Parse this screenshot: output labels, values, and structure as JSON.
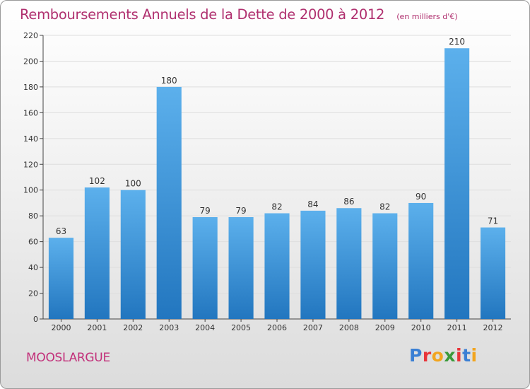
{
  "chart_data": {
    "type": "bar",
    "title": "Remboursements Annuels de la Dette de 2000 à 2012",
    "subtitle": "(en milliers d'€)",
    "categories": [
      "2000",
      "2001",
      "2002",
      "2003",
      "2004",
      "2005",
      "2006",
      "2007",
      "2008",
      "2009",
      "2010",
      "2011",
      "2012"
    ],
    "values": [
      63,
      102,
      100,
      180,
      79,
      79,
      82,
      84,
      86,
      82,
      90,
      210,
      71
    ],
    "value_labels": [
      "63",
      "102",
      "100",
      "180",
      "79",
      "79",
      "82",
      "84",
      "86",
      "82",
      "90",
      "210",
      "71"
    ],
    "xlabel": "",
    "ylabel": "",
    "ylim": [
      0,
      220
    ],
    "yticks": [
      0,
      20,
      40,
      60,
      80,
      100,
      120,
      140,
      160,
      180,
      200,
      220
    ],
    "grid": true,
    "bar_color": "#4d9fe0"
  },
  "footer": {
    "commune": "MOOSLARGUE",
    "logo_letters": [
      "P",
      "r",
      "o",
      "x",
      "i",
      "t",
      "i"
    ],
    "logo_colors": [
      "#3a7fd4",
      "#e8353a",
      "#f2a51f",
      "#3a9a3a",
      "#e8353a",
      "#3a7fd4",
      "#f2a51f"
    ]
  }
}
